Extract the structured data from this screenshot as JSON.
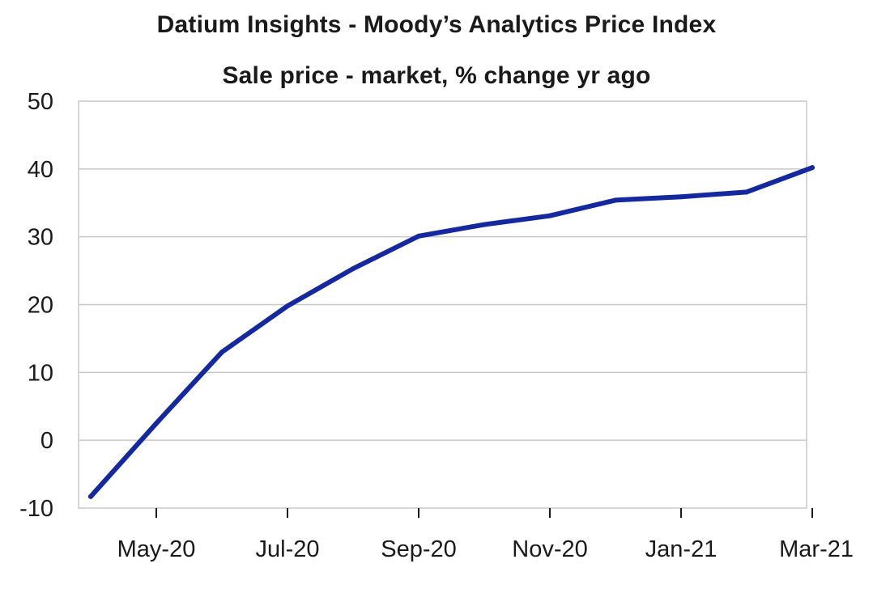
{
  "chart_data": {
    "type": "line",
    "title": "Datium Insights - Moody’s Analytics Price Index",
    "subtitle": "Sale price - market, % change yr ago",
    "xlabel": "",
    "ylabel": "",
    "ylim": [
      -10,
      50
    ],
    "yticks": [
      "50",
      "40",
      "30",
      "20",
      "10",
      "0",
      "-10"
    ],
    "xtick_labels": [
      "May-20",
      "Jul-20",
      "Sep-20",
      "Nov-20",
      "Jan-21",
      "Mar-21"
    ],
    "grid": true,
    "x": [
      "Apr-20",
      "May-20",
      "Jun-20",
      "Jul-20",
      "Aug-20",
      "Sep-20",
      "Oct-20",
      "Nov-20",
      "Dec-20",
      "Jan-21",
      "Feb-21",
      "Mar-21"
    ],
    "series": [
      {
        "values": [
          -8.3,
          2.5,
          13.0,
          19.8,
          25.3,
          30.1,
          31.8,
          33.1,
          35.4,
          35.9,
          36.6,
          40.2
        ],
        "color": "#1428a0"
      }
    ]
  }
}
